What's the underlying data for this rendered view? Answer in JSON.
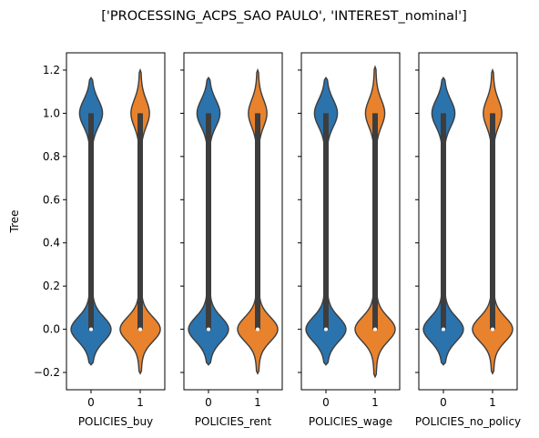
{
  "chart_data": {
    "type": "violin",
    "title": "['PROCESSING_ACPS_SAO PAULO', 'INTEREST_nominal']",
    "ylabel": "Tree",
    "ylim": [
      -0.28,
      1.28
    ],
    "yticks": [
      "−0.2",
      "0.0",
      "0.2",
      "0.4",
      "0.6",
      "0.8",
      "1.0",
      "1.2"
    ],
    "ytick_values": [
      -0.2,
      0.0,
      0.2,
      0.4,
      0.6,
      0.8,
      1.0,
      1.2
    ],
    "shared_y": true,
    "category_colors": {
      "0": "#2b73ad",
      "1": "#e8822d"
    },
    "line_color": "#3d3d3d",
    "subplots": [
      {
        "xlabel": "POLICIES_buy",
        "categories": [
          "0",
          "1"
        ],
        "violins": [
          {
            "category": "0",
            "min": -0.165,
            "max": 1.165,
            "q1": 0.0,
            "median": 0.0,
            "q3": 1.0,
            "whisker_low": 0.0,
            "whisker_high": 1.0,
            "lower_mode": 0.0,
            "upper_mode": 1.0,
            "lower_peak": 0.36,
            "upper_peak": 0.2
          },
          {
            "category": "1",
            "min": -0.205,
            "max": 1.2,
            "q1": 0.0,
            "median": 0.0,
            "q3": 1.0,
            "whisker_low": 0.0,
            "whisker_high": 1.0,
            "lower_mode": 0.0,
            "upper_mode": 1.0,
            "lower_peak": 0.42,
            "upper_peak": 0.18
          }
        ]
      },
      {
        "xlabel": "POLICIES_rent",
        "categories": [
          "0",
          "1"
        ],
        "violins": [
          {
            "category": "0",
            "min": -0.165,
            "max": 1.165,
            "q1": 0.0,
            "median": 0.0,
            "q3": 1.0,
            "whisker_low": 0.0,
            "whisker_high": 1.0,
            "lower_mode": 0.0,
            "upper_mode": 1.0,
            "lower_peak": 0.36,
            "upper_peak": 0.2
          },
          {
            "category": "1",
            "min": -0.205,
            "max": 1.2,
            "q1": 0.0,
            "median": 0.0,
            "q3": 1.0,
            "whisker_low": 0.0,
            "whisker_high": 1.0,
            "lower_mode": 0.0,
            "upper_mode": 1.0,
            "lower_peak": 0.42,
            "upper_peak": 0.18
          }
        ]
      },
      {
        "xlabel": "POLICIES_wage",
        "categories": [
          "0",
          "1"
        ],
        "violins": [
          {
            "category": "0",
            "min": -0.165,
            "max": 1.165,
            "q1": 0.0,
            "median": 0.0,
            "q3": 1.0,
            "whisker_low": 0.0,
            "whisker_high": 1.0,
            "lower_mode": 0.0,
            "upper_mode": 1.0,
            "lower_peak": 0.36,
            "upper_peak": 0.2
          },
          {
            "category": "1",
            "min": -0.22,
            "max": 1.215,
            "q1": 0.0,
            "median": 0.0,
            "q3": 1.0,
            "whisker_low": 0.0,
            "whisker_high": 1.0,
            "lower_mode": 0.0,
            "upper_mode": 1.0,
            "lower_peak": 0.38,
            "upper_peak": 0.17
          }
        ]
      },
      {
        "xlabel": "POLICIES_no_policy",
        "categories": [
          "0",
          "1"
        ],
        "violins": [
          {
            "category": "0",
            "min": -0.165,
            "max": 1.165,
            "q1": 0.0,
            "median": 0.0,
            "q3": 1.0,
            "whisker_low": 0.0,
            "whisker_high": 1.0,
            "lower_mode": 0.0,
            "upper_mode": 1.0,
            "lower_peak": 0.36,
            "upper_peak": 0.2
          },
          {
            "category": "1",
            "min": -0.205,
            "max": 1.2,
            "q1": 0.0,
            "median": 0.0,
            "q3": 1.0,
            "whisker_low": 0.0,
            "whisker_high": 1.0,
            "lower_mode": 0.0,
            "upper_mode": 1.0,
            "lower_peak": 0.42,
            "upper_peak": 0.18
          }
        ]
      }
    ]
  }
}
